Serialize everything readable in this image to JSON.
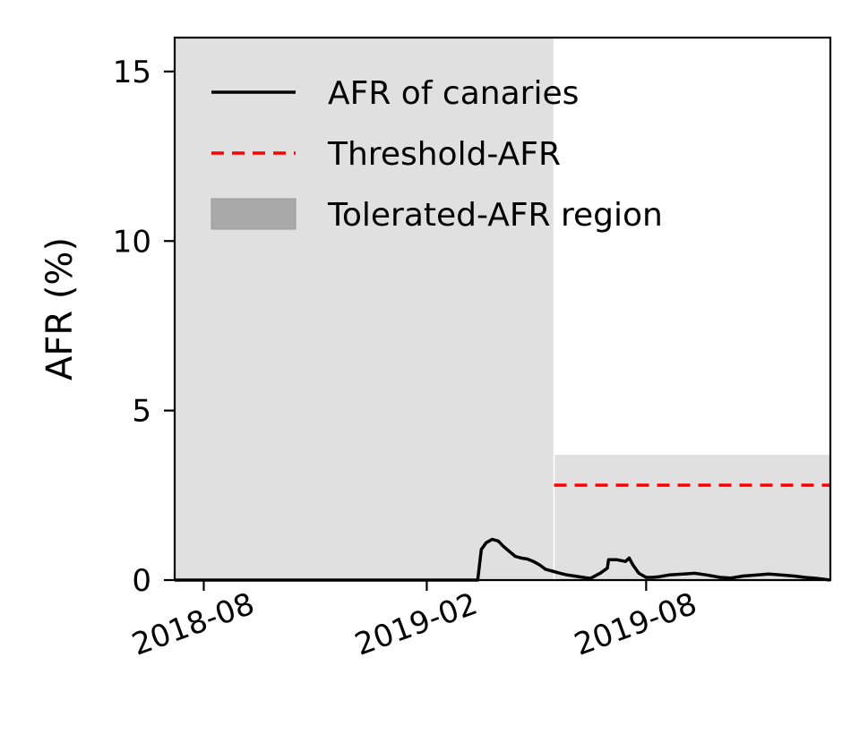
{
  "chart_data": {
    "type": "line",
    "title": "",
    "xlabel": "",
    "ylabel": "AFR (%)",
    "xlim": [
      "2018-07-08",
      "2019-12-31"
    ],
    "ylim": [
      0,
      16
    ],
    "x_ticks": [
      "2018-08-01",
      "2019-02-01",
      "2019-08-01"
    ],
    "x_tick_labels": [
      "2018-08",
      "2019-02",
      "2019-08"
    ],
    "y_ticks": [
      0,
      5,
      10,
      15
    ],
    "y_tick_labels": [
      "0",
      "5",
      "10",
      "15"
    ],
    "grid": false,
    "legend_position": "top-left",
    "legend": [
      {
        "label": "AFR of canaries",
        "kind": "line",
        "color": "#000000"
      },
      {
        "label": "Threshold-AFR",
        "kind": "dashed",
        "color": "#ff0000"
      },
      {
        "label": "Tolerated-AFR region",
        "kind": "patch",
        "color": "#a9a9a9"
      }
    ],
    "regions": [
      {
        "name": "Tolerated-AFR region",
        "x_start": "2018-07-08",
        "x_end": "2019-05-17",
        "y_from": 0,
        "y_to": 16
      },
      {
        "name": "Tolerated-AFR region",
        "x_start": "2019-05-17",
        "x_end": "2019-12-31",
        "y_from": 0,
        "y_to": 3.7
      }
    ],
    "threshold": {
      "name": "Threshold-AFR",
      "y": 2.8,
      "x_start": "2019-05-17",
      "x_end": "2019-12-31",
      "color": "#ff0000"
    },
    "series": [
      {
        "name": "AFR of canaries",
        "color": "#000000",
        "x": [
          "2018-07-08",
          "2019-03-15",
          "2019-03-18",
          "2019-03-22",
          "2019-03-27",
          "2019-04-01",
          "2019-04-05",
          "2019-04-10",
          "2019-04-15",
          "2019-04-20",
          "2019-04-25",
          "2019-04-30",
          "2019-05-05",
          "2019-05-10",
          "2019-05-17",
          "2019-05-22",
          "2019-05-28",
          "2019-06-03",
          "2019-06-10",
          "2019-06-16",
          "2019-06-24",
          "2019-06-30",
          "2019-07-01",
          "2019-07-08",
          "2019-07-15",
          "2019-07-18",
          "2019-07-21",
          "2019-07-26",
          "2019-08-01",
          "2019-08-06",
          "2019-08-12",
          "2019-08-20",
          "2019-09-01",
          "2019-09-10",
          "2019-09-20",
          "2019-10-01",
          "2019-10-10",
          "2019-10-20",
          "2019-11-01",
          "2019-11-10",
          "2019-11-20",
          "2019-12-01",
          "2019-12-10",
          "2019-12-20",
          "2019-12-31"
        ],
        "y": [
          0,
          0,
          0.9,
          1.1,
          1.2,
          1.15,
          1.0,
          0.85,
          0.7,
          0.65,
          0.62,
          0.55,
          0.45,
          0.32,
          0.25,
          0.2,
          0.15,
          0.12,
          0.08,
          0.05,
          0.2,
          0.35,
          0.6,
          0.6,
          0.55,
          0.65,
          0.45,
          0.2,
          0.08,
          0.08,
          0.1,
          0.15,
          0.18,
          0.2,
          0.15,
          0.08,
          0.06,
          0.12,
          0.15,
          0.18,
          0.15,
          0.12,
          0.08,
          0.05,
          0.0
        ]
      }
    ]
  }
}
